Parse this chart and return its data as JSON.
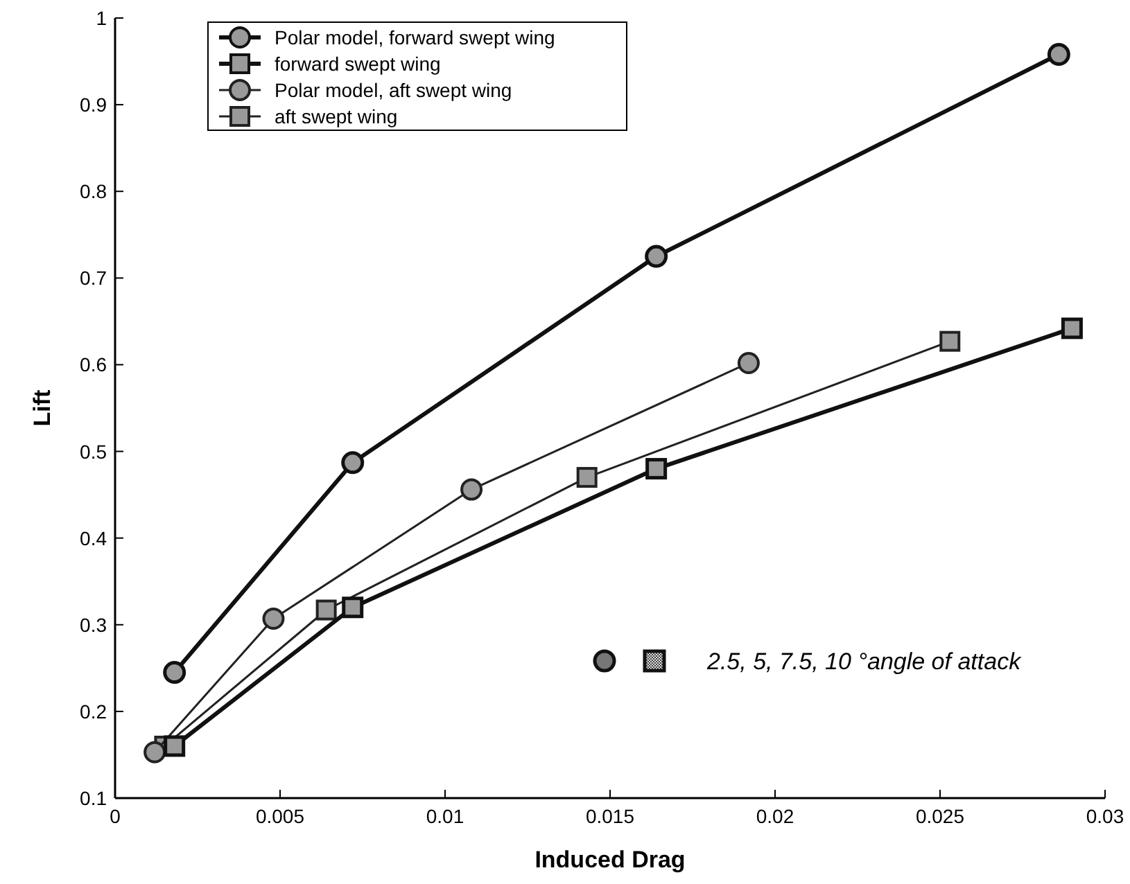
{
  "chart_data": {
    "type": "line",
    "xlabel": "Induced Drag",
    "ylabel": "Lift",
    "xlim": [
      0,
      0.03
    ],
    "ylim": [
      0.1,
      1
    ],
    "xticks": [
      0,
      0.005,
      0.01,
      0.015,
      0.02,
      0.025,
      0.03
    ],
    "yticks": [
      0.1,
      0.2,
      0.3,
      0.4,
      0.5,
      0.6,
      0.7,
      0.8,
      0.9,
      1
    ],
    "grid": false,
    "legend": "top left",
    "line_style": "solid",
    "series": [
      {
        "name": "Polar model, forward swept wing",
        "color": "#111111",
        "marker": "circle",
        "x": [
          0.0018,
          0.0072,
          0.0164,
          0.0286
        ],
        "values": [
          0.245,
          0.487,
          0.725,
          0.958
        ]
      },
      {
        "name": "forward swept wing",
        "color": "#111111",
        "marker": "square",
        "x": [
          0.0018,
          0.0072,
          0.0164,
          0.029
        ],
        "values": [
          0.16,
          0.32,
          0.48,
          0.642
        ]
      },
      {
        "name": "Polar model, aft swept wing",
        "color": "#222222",
        "marker": "circle",
        "x": [
          0.0012,
          0.0048,
          0.0108,
          0.0192
        ],
        "values": [
          0.153,
          0.307,
          0.456,
          0.602
        ]
      },
      {
        "name": "aft swept wing",
        "color": "#222222",
        "marker": "square",
        "x": [
          0.0015,
          0.0064,
          0.0143,
          0.0253
        ],
        "values": [
          0.16,
          0.317,
          0.47,
          0.627
        ]
      }
    ],
    "annotations": [
      "2.5, 5, 7.5, 10 °angle of attack"
    ]
  }
}
